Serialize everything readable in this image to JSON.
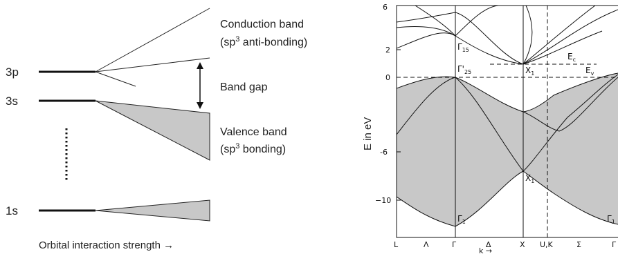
{
  "left_diagram": {
    "levels": {
      "p3": "3p",
      "s3": "3s",
      "s1": "1s"
    },
    "conduction_band": {
      "line1": "Conduction band",
      "line2_pre": "(sp",
      "line2_sup": "3",
      "line2_post": " anti-bonding)"
    },
    "band_gap": "Band gap",
    "valence_band": {
      "line1": "Valence band",
      "line2_pre": "(sp",
      "line2_sup": "3",
      "line2_post": " bonding)"
    },
    "x_axis": "Orbital interaction strength →",
    "fill_color": "#c8c8c8"
  },
  "right_diagram": {
    "ylabel": "E in eV",
    "xlabel": "k →",
    "y_ticks": [
      "6",
      "2",
      "0",
      "-6",
      "−10"
    ],
    "x_ticks": [
      "L",
      "Λ",
      "Γ",
      "Δ",
      "X",
      "U,K",
      "Σ",
      "Γ"
    ],
    "symmetry_labels": {
      "gamma15": {
        "base": "Γ",
        "sub": "15"
      },
      "gamma25": {
        "base": "Γ'",
        "sub": "25"
      },
      "x1_top": {
        "base": "X",
        "sub": "1"
      },
      "ec": {
        "base": "E",
        "sub": "c"
      },
      "ev": {
        "base": "E",
        "sub": "v"
      },
      "x1_mid": {
        "base": "X",
        "sub": "1"
      },
      "gamma1_left": {
        "base": "Γ",
        "sub": "1"
      },
      "gamma1_right": {
        "base": "Γ",
        "sub": "1"
      }
    },
    "fill_color": "#c8c8c8"
  }
}
